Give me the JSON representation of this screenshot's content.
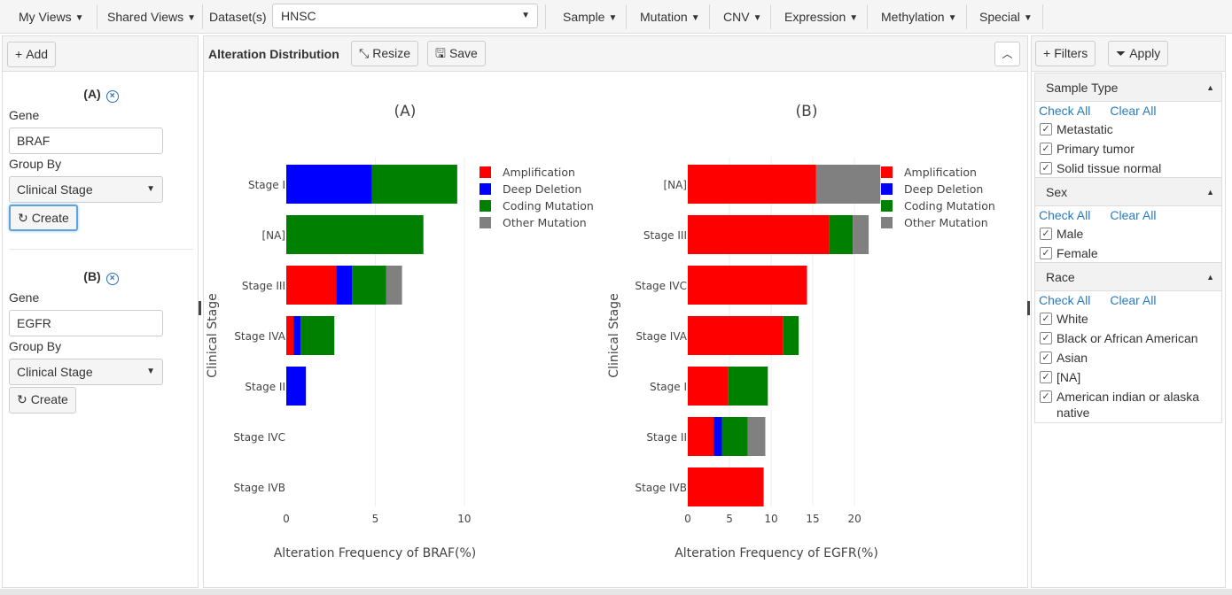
{
  "topbar": {
    "my_views": "My Views",
    "shared_views": "Shared Views",
    "dataset_label": "Dataset(s)",
    "dataset_value": "HNSC",
    "menus": [
      "Sample",
      "Mutation",
      "CNV",
      "Expression",
      "Methylation",
      "Special"
    ]
  },
  "left": {
    "add_label": "Add",
    "blocks": [
      {
        "title": "(A)",
        "gene_label": "Gene",
        "gene_value": "BRAF",
        "groupby_label": "Group By",
        "groupby_value": "Clinical Stage",
        "create_label": "Create"
      },
      {
        "title": "(B)",
        "gene_label": "Gene",
        "gene_value": "EGFR",
        "groupby_label": "Group By",
        "groupby_value": "Clinical Stage",
        "create_label": "Create"
      }
    ]
  },
  "center": {
    "title": "Alteration Distribution",
    "resize_label": "Resize",
    "save_label": "Save"
  },
  "right": {
    "filters_label": "Filters",
    "apply_label": "Apply",
    "check_all": "Check All",
    "clear_all": "Clear All",
    "groups": [
      {
        "name": "Sample Type",
        "items": [
          "Metastatic",
          "Primary tumor",
          "Solid tissue normal"
        ]
      },
      {
        "name": "Sex",
        "items": [
          "Male",
          "Female"
        ]
      },
      {
        "name": "Race",
        "items": [
          "White",
          "Black or African American",
          "Asian",
          "[NA]",
          "American indian or alaska native"
        ]
      }
    ]
  },
  "chart_data": [
    {
      "type": "bar",
      "orientation": "horizontal",
      "stacked": true,
      "title": "(A)",
      "xlabel": "Alteration Frequency of BRAF(%)",
      "ylabel": "Clinical Stage",
      "xlim": [
        0,
        11
      ],
      "xticks": [
        0,
        5,
        10
      ],
      "categories": [
        "Stage I",
        "[NA]",
        "Stage III",
        "Stage IVA",
        "Stage II",
        "Stage IVC",
        "Stage IVB"
      ],
      "series": [
        {
          "name": "Amplification",
          "color": "#ff0000",
          "values": [
            0,
            0,
            2.8,
            0.4,
            0,
            0,
            0
          ]
        },
        {
          "name": "Deep Deletion",
          "color": "#0000ff",
          "values": [
            4.8,
            0,
            0.9,
            0.4,
            1.1,
            0,
            0
          ]
        },
        {
          "name": "Coding Mutation",
          "color": "#008000",
          "values": [
            4.8,
            7.7,
            1.9,
            1.9,
            0,
            0,
            0
          ]
        },
        {
          "name": "Other Mutation",
          "color": "#808080",
          "values": [
            0,
            0,
            0.9,
            0,
            0,
            0,
            0
          ]
        }
      ],
      "legend": "top-right",
      "grid": true
    },
    {
      "type": "bar",
      "orientation": "horizontal",
      "stacked": true,
      "title": "(B)",
      "xlabel": "Alteration Frequency of EGFR(%)",
      "ylabel": "Clinical Stage",
      "xlim": [
        0,
        23.5
      ],
      "xticks": [
        0,
        5,
        10,
        15,
        20
      ],
      "categories": [
        "[NA]",
        "Stage III",
        "Stage IVC",
        "Stage IVA",
        "Stage I",
        "Stage II",
        "Stage IVB"
      ],
      "series": [
        {
          "name": "Amplification",
          "color": "#ff0000",
          "values": [
            15.4,
            17.0,
            14.3,
            11.4,
            4.8,
            3.1,
            9.1
          ]
        },
        {
          "name": "Deep Deletion",
          "color": "#0000ff",
          "values": [
            0,
            0,
            0,
            0,
            0,
            1.0,
            0
          ]
        },
        {
          "name": "Coding Mutation",
          "color": "#008000",
          "values": [
            0,
            2.8,
            0,
            1.9,
            4.8,
            3.1,
            0
          ]
        },
        {
          "name": "Other Mutation",
          "color": "#808080",
          "values": [
            7.7,
            1.9,
            0,
            0,
            0,
            2.1,
            0
          ]
        }
      ],
      "legend": "top-right",
      "grid": true
    }
  ]
}
